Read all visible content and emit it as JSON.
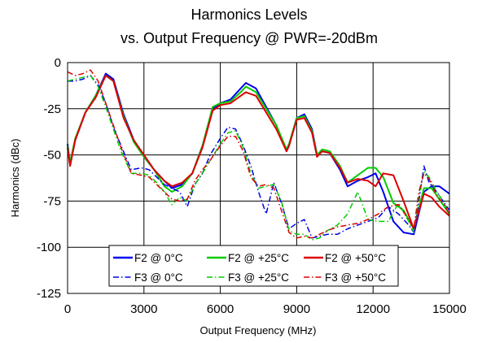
{
  "chart_data": {
    "type": "line",
    "title": "Harmonics Levels",
    "subtitle": "vs. Output Frequency @ PWR=-20dBm",
    "xlabel": "Output Frequency (MHz)",
    "ylabel": "Harmonics (dBc)",
    "xlim": [
      0,
      15000
    ],
    "ylim": [
      -125,
      0
    ],
    "xticks": [
      0,
      3000,
      6000,
      9000,
      12000,
      15000
    ],
    "yticks": [
      0,
      -25,
      -50,
      -75,
      -100,
      -125
    ],
    "xtick_labels": [
      "0",
      "3000",
      "6000",
      "9000",
      "12000",
      "15000"
    ],
    "ytick_labels": [
      "0",
      "-25",
      "-50",
      "-75",
      "-100",
      "-125"
    ],
    "grid": true,
    "legend_position": "bottom-center",
    "series": [
      {
        "name": "F2 @ 0°C",
        "color": "#0000ee",
        "dash": "solid",
        "x": [
          0,
          100,
          300,
          700,
          1100,
          1500,
          1800,
          2200,
          2600,
          3000,
          3400,
          3800,
          4100,
          4500,
          4900,
          5300,
          5700,
          6000,
          6400,
          6800,
          7000,
          7400,
          7800,
          8200,
          8600,
          8700,
          9000,
          9300,
          9600,
          9800,
          10000,
          10300,
          10700,
          11000,
          11400,
          11800,
          12100,
          12400,
          12800,
          13200,
          13600,
          14000,
          14300,
          14600,
          15000
        ],
        "y": [
          -44,
          -55,
          -42,
          -27,
          -18,
          -6,
          -9,
          -28,
          -42,
          -51,
          -58,
          -64,
          -68,
          -66,
          -60,
          -45,
          -25,
          -22,
          -20,
          -14,
          -11,
          -14,
          -24,
          -34,
          -48,
          -45,
          -30,
          -28,
          -36,
          -50,
          -48,
          -49,
          -58,
          -67,
          -64,
          -62,
          -60,
          -70,
          -86,
          -92,
          -93,
          -70,
          -67,
          -67,
          -71
        ]
      },
      {
        "name": "F2 @ +25°C",
        "color": "#00cc00",
        "dash": "solid",
        "x": [
          0,
          100,
          300,
          700,
          1100,
          1500,
          1800,
          2200,
          2600,
          3000,
          3400,
          3800,
          4100,
          4500,
          4900,
          5300,
          5700,
          6000,
          6400,
          6800,
          7000,
          7400,
          7800,
          8200,
          8600,
          8700,
          9000,
          9300,
          9600,
          9800,
          10000,
          10300,
          10700,
          11000,
          11400,
          11800,
          12100,
          12400,
          12800,
          13200,
          13600,
          14000,
          14300,
          14600,
          15000
        ],
        "y": [
          -45,
          -54,
          -41,
          -27,
          -18,
          -7,
          -10,
          -29,
          -43,
          -51,
          -58,
          -67,
          -70,
          -67,
          -60,
          -45,
          -24,
          -22,
          -21,
          -16,
          -13,
          -16,
          -25,
          -34,
          -47,
          -44,
          -30,
          -29,
          -37,
          -50,
          -47,
          -48,
          -56,
          -65,
          -61,
          -57,
          -57,
          -62,
          -76,
          -80,
          -90,
          -68,
          -68,
          -74,
          -82
        ]
      },
      {
        "name": "F2 @ +50°C",
        "color": "#dd0000",
        "dash": "solid",
        "x": [
          0,
          100,
          300,
          700,
          1100,
          1500,
          1800,
          2200,
          2600,
          3000,
          3400,
          3800,
          4100,
          4500,
          4900,
          5300,
          5700,
          6000,
          6400,
          6800,
          7000,
          7400,
          7800,
          8200,
          8600,
          8700,
          9000,
          9300,
          9600,
          9800,
          10000,
          10300,
          10700,
          11000,
          11400,
          11800,
          12100,
          12400,
          12800,
          13200,
          13600,
          14000,
          14300,
          14600,
          15000
        ],
        "y": [
          -46,
          -56,
          -42,
          -27,
          -19,
          -7,
          -10,
          -30,
          -42,
          -50,
          -58,
          -64,
          -67,
          -65,
          -60,
          -46,
          -26,
          -23,
          -22,
          -18,
          -16,
          -18,
          -27,
          -36,
          -48,
          -45,
          -31,
          -30,
          -38,
          -51,
          -48,
          -49,
          -57,
          -65,
          -63,
          -64,
          -67,
          -60,
          -61,
          -75,
          -90,
          -71,
          -73,
          -78,
          -83
        ]
      },
      {
        "name": "F3 @ 0°C",
        "color": "#0000ee",
        "dash": "dashdot",
        "x": [
          0,
          300,
          600,
          900,
          1200,
          1500,
          1800,
          2100,
          2500,
          2900,
          3200,
          3500,
          3800,
          4100,
          4400,
          4700,
          5000,
          5300,
          5600,
          6000,
          6300,
          6600,
          6900,
          7200,
          7500,
          7800,
          8100,
          8400,
          8700,
          9000,
          9300,
          9600,
          9900,
          10200,
          10600,
          11000,
          11400,
          11800,
          12200,
          12600,
          13000,
          13400,
          13600,
          13800,
          14000,
          14200,
          14500,
          14800,
          15000
        ],
        "y": [
          -10,
          -10,
          -9,
          -7,
          -12,
          -22,
          -35,
          -45,
          -58,
          -57,
          -58,
          -62,
          -66,
          -68,
          -70,
          -78,
          -66,
          -60,
          -50,
          -41,
          -35,
          -36,
          -45,
          -56,
          -70,
          -82,
          -65,
          -76,
          -90,
          -87,
          -85,
          -95,
          -94,
          -93,
          -93,
          -90,
          -88,
          -86,
          -84,
          -78,
          -82,
          -88,
          -92,
          -75,
          -56,
          -65,
          -70,
          -76,
          -80
        ]
      },
      {
        "name": "F3 @ +25°C",
        "color": "#00cc00",
        "dash": "dashdot",
        "x": [
          0,
          300,
          600,
          900,
          1200,
          1500,
          1800,
          2100,
          2500,
          2900,
          3200,
          3500,
          3800,
          4100,
          4400,
          4700,
          5000,
          5300,
          5600,
          6000,
          6300,
          6600,
          6900,
          7200,
          7500,
          7800,
          8100,
          8400,
          8700,
          9000,
          9300,
          9600,
          9900,
          10200,
          10600,
          11000,
          11400,
          11800,
          12200,
          12600,
          13000,
          13400,
          13600,
          13800,
          14000,
          14200,
          14500,
          14800,
          15000
        ],
        "y": [
          -10,
          -9,
          -8,
          -7,
          -13,
          -24,
          -36,
          -48,
          -60,
          -60,
          -61,
          -65,
          -70,
          -77,
          -73,
          -75,
          -66,
          -60,
          -53,
          -44,
          -38,
          -37,
          -46,
          -60,
          -68,
          -67,
          -66,
          -75,
          -91,
          -93,
          -93,
          -96,
          -95,
          -91,
          -88,
          -82,
          -70,
          -85,
          -86,
          -86,
          -76,
          -86,
          -92,
          -72,
          -59,
          -62,
          -70,
          -76,
          -83
        ]
      },
      {
        "name": "F3 @ +50°C",
        "color": "#dd0000",
        "dash": "dashdot",
        "x": [
          0,
          300,
          600,
          900,
          1200,
          1500,
          1800,
          2100,
          2500,
          2900,
          3200,
          3500,
          3800,
          4100,
          4400,
          4700,
          5000,
          5300,
          5600,
          6000,
          6300,
          6600,
          6900,
          7200,
          7500,
          7800,
          8100,
          8400,
          8700,
          9000,
          9300,
          9600,
          9900,
          10200,
          10600,
          11000,
          11400,
          11800,
          12200,
          12600,
          13000,
          13400,
          13600,
          13800,
          14000,
          14200,
          14500,
          14800,
          15000
        ],
        "y": [
          -5,
          -7,
          -6,
          -4,
          -10,
          -22,
          -34,
          -46,
          -60,
          -61,
          -62,
          -66,
          -70,
          -74,
          -75,
          -74,
          -64,
          -58,
          -53,
          -45,
          -40,
          -40,
          -48,
          -62,
          -67,
          -66,
          -68,
          -80,
          -92,
          -95,
          -94,
          -95,
          -93,
          -91,
          -89,
          -88,
          -87,
          -85,
          -82,
          -78,
          -77,
          -85,
          -90,
          -70,
          -60,
          -63,
          -72,
          -77,
          -82
        ]
      }
    ]
  }
}
